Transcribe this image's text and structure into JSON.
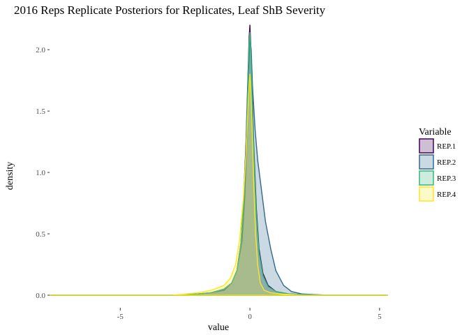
{
  "chart_data": {
    "type": "area",
    "title": "2016 Reps Replicate Posteriors for Replicates, Leaf ShB Severity",
    "xlabel": "value",
    "ylabel": "density",
    "xlim": [
      -7.7,
      5.3
    ],
    "ylim": [
      0,
      2.2
    ],
    "x_ticks": [
      {
        "value": -5,
        "label": "-5"
      },
      {
        "value": 0,
        "label": "0"
      },
      {
        "value": 5,
        "label": "5"
      }
    ],
    "y_ticks": [
      {
        "value": 0,
        "label": "0.0"
      },
      {
        "value": 0.5,
        "label": "0.5"
      },
      {
        "value": 1.0,
        "label": "1.0"
      },
      {
        "value": 1.5,
        "label": "1.5"
      },
      {
        "value": 2.0,
        "label": "2.0"
      }
    ],
    "grid": false,
    "legend": {
      "title": "Variable",
      "position": "right"
    },
    "series": [
      {
        "name": "REP.1",
        "color": "#440154",
        "x": [
          -7.7,
          -3.0,
          -2.0,
          -1.5,
          -1.0,
          -0.7,
          -0.5,
          -0.35,
          -0.25,
          -0.15,
          -0.08,
          -0.03,
          0.0,
          0.03,
          0.08,
          0.15,
          0.25,
          0.35,
          0.5,
          0.7,
          1.0,
          1.5,
          2.0,
          3.0,
          5.3
        ],
        "values": [
          0.0,
          0.0,
          0.01,
          0.02,
          0.05,
          0.1,
          0.2,
          0.42,
          0.75,
          1.25,
          1.75,
          2.1,
          2.2,
          2.05,
          1.7,
          1.2,
          0.7,
          0.38,
          0.18,
          0.08,
          0.03,
          0.01,
          0.005,
          0.0,
          0.0
        ]
      },
      {
        "name": "REP.2",
        "color": "#31688e",
        "x": [
          -7.7,
          -3.0,
          -2.0,
          -1.5,
          -1.0,
          -0.7,
          -0.5,
          -0.3,
          -0.2,
          -0.1,
          -0.05,
          0.0,
          0.05,
          0.1,
          0.2,
          0.3,
          0.45,
          0.6,
          0.8,
          1.0,
          1.3,
          1.6,
          2.0,
          3.0,
          5.3
        ],
        "values": [
          0.0,
          0.0,
          0.01,
          0.02,
          0.04,
          0.1,
          0.2,
          0.45,
          0.8,
          1.35,
          1.8,
          2.1,
          2.0,
          1.7,
          1.35,
          1.1,
          0.85,
          0.6,
          0.38,
          0.2,
          0.08,
          0.03,
          0.01,
          0.0,
          0.0
        ]
      },
      {
        "name": "REP.3",
        "color": "#35b779",
        "x": [
          -7.7,
          -3.0,
          -2.0,
          -1.5,
          -1.0,
          -0.7,
          -0.5,
          -0.35,
          -0.25,
          -0.15,
          -0.08,
          -0.03,
          0.0,
          0.03,
          0.08,
          0.15,
          0.25,
          0.35,
          0.5,
          0.7,
          1.0,
          1.5,
          2.0,
          3.0,
          5.3
        ],
        "values": [
          0.0,
          0.0,
          0.01,
          0.02,
          0.05,
          0.1,
          0.2,
          0.42,
          0.75,
          1.2,
          1.7,
          2.05,
          2.14,
          2.0,
          1.65,
          1.15,
          0.65,
          0.35,
          0.16,
          0.07,
          0.03,
          0.01,
          0.005,
          0.0,
          0.0
        ]
      },
      {
        "name": "REP.4",
        "color": "#fde725",
        "x": [
          -7.7,
          -3.0,
          -2.5,
          -2.0,
          -1.5,
          -1.0,
          -0.75,
          -0.55,
          -0.4,
          -0.25,
          -0.15,
          -0.08,
          -0.03,
          0.0,
          0.03,
          0.08,
          0.15,
          0.22,
          0.3,
          0.4,
          0.55,
          0.8,
          1.2,
          2.0,
          5.3
        ],
        "values": [
          0.0,
          0.0,
          0.01,
          0.02,
          0.04,
          0.08,
          0.14,
          0.25,
          0.45,
          0.8,
          1.15,
          1.5,
          1.72,
          1.8,
          1.7,
          1.4,
          0.9,
          0.5,
          0.25,
          0.1,
          0.04,
          0.02,
          0.01,
          0.0,
          0.0
        ]
      }
    ]
  }
}
